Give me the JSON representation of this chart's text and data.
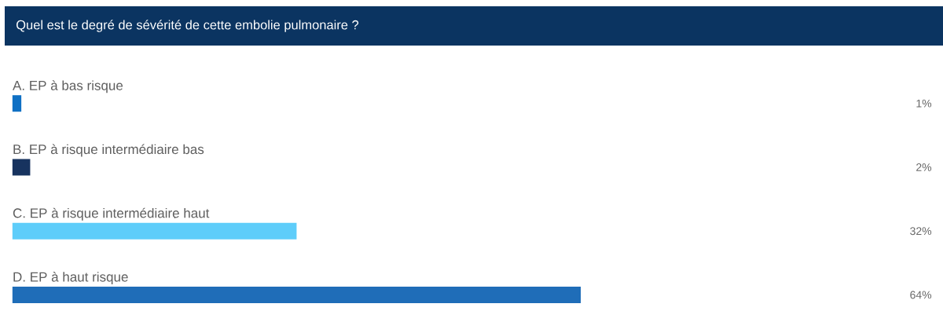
{
  "chart_data": {
    "type": "bar",
    "orientation": "horizontal",
    "title": "Quel est le degré de sévérité de cette embolie pulmonaire ?",
    "categories": [
      "A. EP à bas risque",
      "B. EP à risque intermédiaire bas",
      "C. EP à risque intermédiaire haut",
      "D. EP à haut risque"
    ],
    "values": [
      1,
      2,
      32,
      64
    ],
    "colors": [
      "#0f70c4",
      "#17335f",
      "#5ecdfa",
      "#1f6db8"
    ],
    "value_labels": [
      "1%",
      "2%",
      "32%",
      "64%"
    ]
  }
}
